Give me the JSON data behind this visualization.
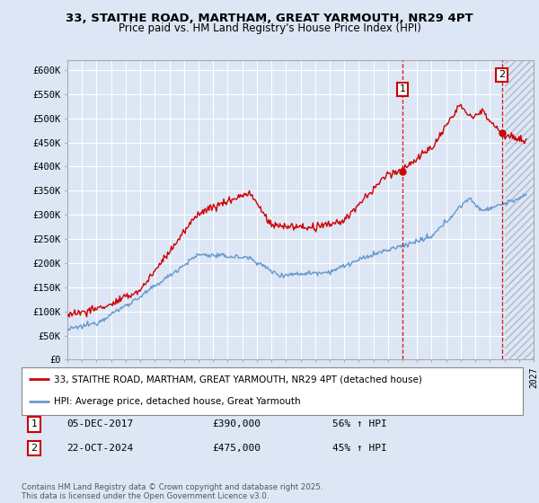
{
  "title_line1": "33, STAITHE ROAD, MARTHAM, GREAT YARMOUTH, NR29 4PT",
  "title_line2": "Price paid vs. HM Land Registry's House Price Index (HPI)",
  "background_color": "#dce6f5",
  "plot_bg_color": "#dce6f5",
  "grid_color": "#ffffff",
  "line1_color": "#cc0000",
  "line2_color": "#6699cc",
  "vline_color": "#cc0000",
  "marker1_x": 2018.0,
  "marker2_x": 2024.83,
  "hatch_start": 2025.0,
  "marker1_date": "05-DEC-2017",
  "marker1_price": "£390,000",
  "marker1_pct": "56% ↑ HPI",
  "marker2_date": "22-OCT-2024",
  "marker2_price": "£475,000",
  "marker2_pct": "45% ↑ HPI",
  "legend_line1": "33, STAITHE ROAD, MARTHAM, GREAT YARMOUTH, NR29 4PT (detached house)",
  "legend_line2": "HPI: Average price, detached house, Great Yarmouth",
  "footer": "Contains HM Land Registry data © Crown copyright and database right 2025.\nThis data is licensed under the Open Government Licence v3.0.",
  "xmin": 1995,
  "xmax": 2027,
  "ymin": 0,
  "ymax": 620000,
  "yticks": [
    0,
    50000,
    100000,
    150000,
    200000,
    250000,
    300000,
    350000,
    400000,
    450000,
    500000,
    550000,
    600000
  ]
}
